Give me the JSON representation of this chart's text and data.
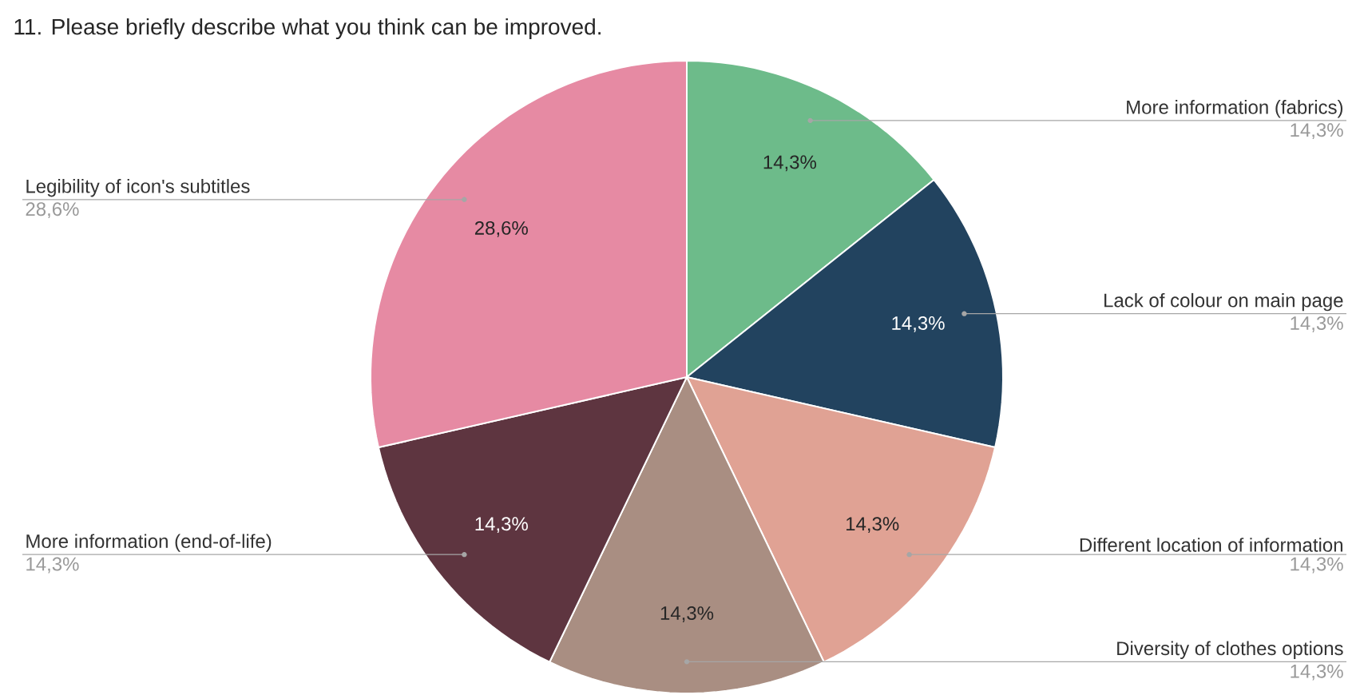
{
  "chart_data": {
    "type": "pie",
    "title": "11. Please briefly describe what you think can be improved.",
    "categories": [
      "More information (fabrics)",
      "Lack of colour on main page",
      "Different location of information",
      "Diversity of clothes options",
      "More information (end-of-life)",
      "Legibility of icon's subtitles"
    ],
    "values": [
      14.3,
      14.3,
      14.3,
      14.3,
      14.3,
      28.6
    ],
    "value_labels": [
      "14,3%",
      "14,3%",
      "14,3%",
      "14,3%",
      "14,3%",
      "28,6%"
    ],
    "colors": [
      "#6dbb8a",
      "#22435f",
      "#e0a294",
      "#a98e82",
      "#5e3540",
      "#e68aa3"
    ]
  }
}
